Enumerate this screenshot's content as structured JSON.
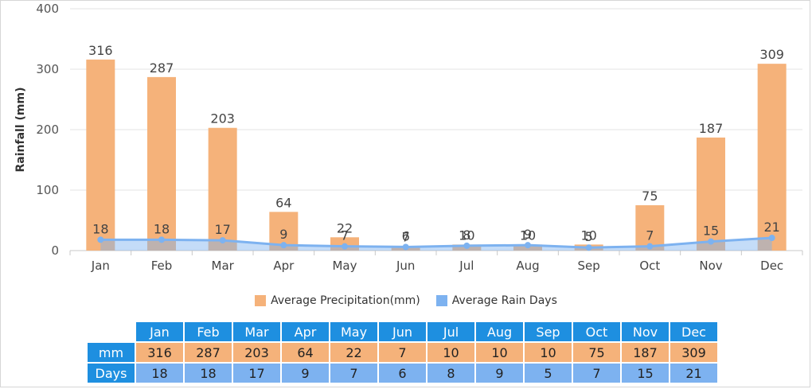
{
  "chart_data": {
    "type": "bar",
    "categories": [
      "Jan",
      "Feb",
      "Mar",
      "Apr",
      "May",
      "Jun",
      "Jul",
      "Aug",
      "Sep",
      "Oct",
      "Nov",
      "Dec"
    ],
    "series": [
      {
        "name": "Average Precipitation(mm)",
        "type": "bar",
        "color": "#f5b27a",
        "values": [
          316,
          287,
          203,
          64,
          22,
          7,
          10,
          10,
          10,
          75,
          187,
          309
        ]
      },
      {
        "name": "Average Rain Days",
        "type": "area-line",
        "color": "#7db2f0",
        "values": [
          18,
          18,
          17,
          9,
          7,
          6,
          8,
          9,
          5,
          7,
          15,
          21
        ]
      }
    ],
    "ylabel": "Rainfall (mm)",
    "ylim": [
      0,
      400
    ],
    "yticks": [
      "0",
      "100",
      "200",
      "300",
      "400"
    ],
    "grid": true,
    "legend_position": "bottom-center"
  },
  "table": {
    "row_labels": [
      "mm",
      "Days"
    ]
  },
  "colors": {
    "precip": "#f5b27a",
    "days": "#7db2f0",
    "header": "#1e8fe0"
  }
}
